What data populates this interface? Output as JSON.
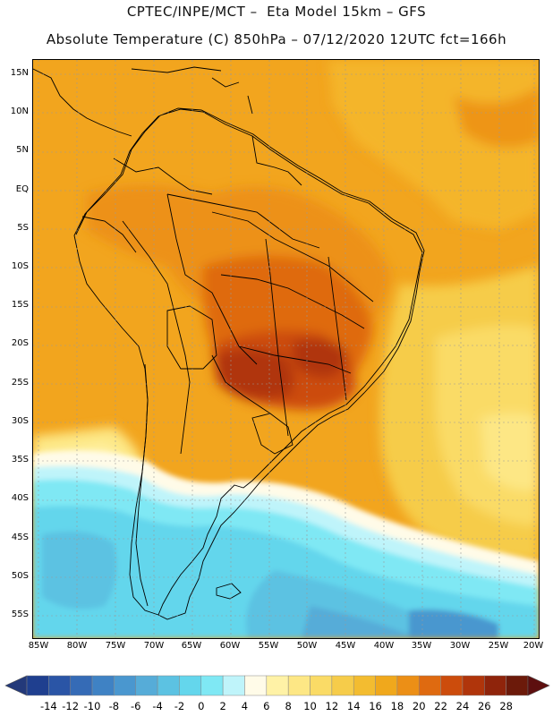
{
  "header": {
    "line1": "CPTEC/INPE/MCT –  Eta Model 15km – GFS",
    "line2": "Absolute Temperature (C) 850hPa – 07/12/2020 12UTC fct=166h"
  },
  "axes": {
    "lat_labels": [
      "15N",
      "10N",
      "5N",
      "EQ",
      "5S",
      "10S",
      "15S",
      "20S",
      "25S",
      "30S",
      "35S",
      "40S",
      "45S",
      "50S",
      "55S"
    ],
    "lon_labels": [
      "85W",
      "80W",
      "75W",
      "70W",
      "65W",
      "60W",
      "55W",
      "50W",
      "45W",
      "40W",
      "35W",
      "30W",
      "25W",
      "20W"
    ]
  },
  "colorbar": {
    "labels": [
      "-14",
      "-12",
      "-10",
      "-8",
      "-6",
      "-4",
      "-2",
      "0",
      "2",
      "4",
      "6",
      "8",
      "10",
      "12",
      "14",
      "16",
      "18",
      "20",
      "22",
      "24",
      "26",
      "28"
    ],
    "colors": [
      "#1f3f8f",
      "#2a55a6",
      "#356bb6",
      "#3f82c4",
      "#4a97cf",
      "#56acd8",
      "#5cc2e2",
      "#64d6ec",
      "#7fe8f4",
      "#bff4fa",
      "#fffbe8",
      "#fff2a6",
      "#fde785",
      "#fadb66",
      "#f6cc4a",
      "#f3bc30",
      "#f0a81c",
      "#ec8f16",
      "#df6a10",
      "#cc4c0c",
      "#b0350b",
      "#8f240b",
      "#6c1a0a"
    ],
    "under_color": "#23397a",
    "over_color": "#5d0f0f"
  }
}
